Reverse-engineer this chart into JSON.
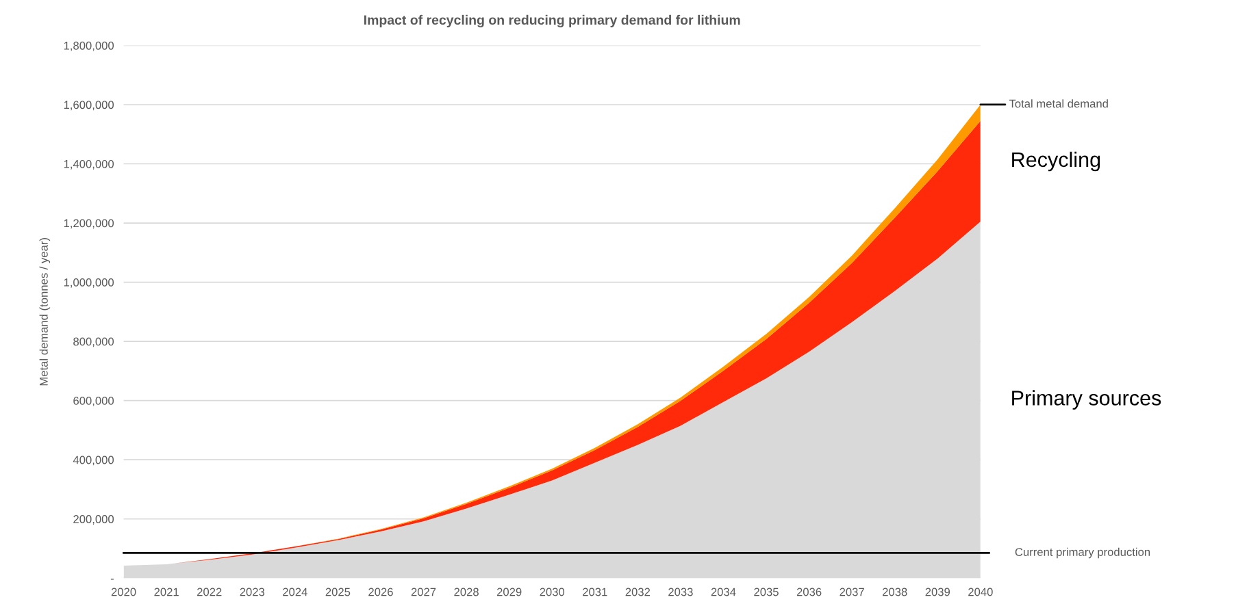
{
  "chart_data": {
    "type": "area",
    "stacked": true,
    "title": "Impact of recycling on reducing primary demand for lithium",
    "ylabel": "Metal demand (tonnes / year)",
    "x": [
      2020,
      2021,
      2022,
      2023,
      2024,
      2025,
      2026,
      2027,
      2028,
      2029,
      2030,
      2031,
      2032,
      2033,
      2034,
      2035,
      2036,
      2037,
      2038,
      2039,
      2040
    ],
    "series": [
      {
        "name": "Primary sources",
        "color": "#d9d9d9",
        "values": [
          42000,
          47000,
          62000,
          80000,
          103000,
          128000,
          158000,
          192000,
          235000,
          282000,
          330000,
          390000,
          450000,
          515000,
          595000,
          675000,
          765000,
          865000,
          970000,
          1080000,
          1205000
        ]
      },
      {
        "name": "Recycling",
        "color": "#ff2a0a",
        "values": [
          0,
          0,
          2000,
          4000,
          4000,
          4000,
          6000,
          10000,
          16000,
          23000,
          34000,
          43000,
          61000,
          84000,
          106000,
          133000,
          165000,
          200000,
          248000,
          295000,
          340000
        ]
      },
      {
        "color": "#ff9900",
        "values": [
          0,
          0,
          0,
          0,
          0,
          1000,
          2000,
          3000,
          4000,
          5000,
          6000,
          7000,
          9000,
          11000,
          14000,
          17000,
          20000,
          25000,
          32000,
          40000,
          55000
        ]
      }
    ],
    "xlim": [
      2020,
      2040
    ],
    "xticks": [
      2020,
      2021,
      2022,
      2023,
      2024,
      2025,
      2026,
      2027,
      2028,
      2029,
      2030,
      2031,
      2032,
      2033,
      2034,
      2035,
      2036,
      2037,
      2038,
      2039,
      2040
    ],
    "ylim": [
      0,
      1800000
    ],
    "yticks": [
      {
        "value": 0,
        "label": "-"
      },
      {
        "value": 200000,
        "label": "200,000"
      },
      {
        "value": 400000,
        "label": "400,000"
      },
      {
        "value": 600000,
        "label": "600,000"
      },
      {
        "value": 800000,
        "label": "800,000"
      },
      {
        "value": 1000000,
        "label": "1,000,000"
      },
      {
        "value": 1200000,
        "label": "1,200,000"
      },
      {
        "value": 1400000,
        "label": "1,400,000"
      },
      {
        "value": 1600000,
        "label": "1,600,000"
      },
      {
        "value": 1800000,
        "label": "1,800,000"
      }
    ],
    "ref_lines": [
      {
        "axis": "y",
        "value": 85000,
        "label": "Current primary production",
        "color": "#000000"
      }
    ],
    "annotations": [
      {
        "text": "Total metal demand",
        "x": 2040,
        "y": 1600000
      }
    ],
    "grid": "y",
    "legend": false
  }
}
